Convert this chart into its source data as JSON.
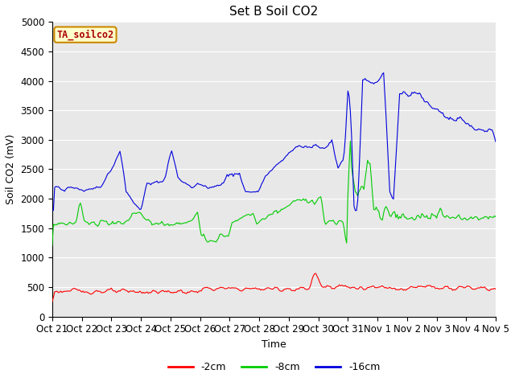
{
  "title": "Set B Soil CO2",
  "xlabel": "Time",
  "ylabel": "Soil CO2 (mV)",
  "ylim": [
    0,
    5000
  ],
  "yticks": [
    0,
    500,
    1000,
    1500,
    2000,
    2500,
    3000,
    3500,
    4000,
    4500,
    5000
  ],
  "xtick_labels": [
    "Oct 21",
    "Oct 22",
    "Oct 23",
    "Oct 24",
    "Oct 25",
    "Oct 26",
    "Oct 27",
    "Oct 28",
    "Oct 29",
    "Oct 30",
    "Oct 31",
    "Nov 1",
    "Nov 2",
    "Nov 3",
    "Nov 4",
    "Nov 5"
  ],
  "colors": {
    "red": "#ff0000",
    "green": "#00cc00",
    "blue": "#0000dd",
    "background": "#e8e8e8",
    "grid": "#ffffff"
  },
  "legend_label": "TA_soilco2",
  "legend_box_facecolor": "#ffffcc",
  "legend_box_edgecolor": "#cc8800",
  "legend_text_color": "#aa0000",
  "series_labels": [
    "-2cm",
    "-8cm",
    "-16cm"
  ],
  "title_fontsize": 11,
  "axis_label_fontsize": 9,
  "tick_fontsize": 8.5
}
